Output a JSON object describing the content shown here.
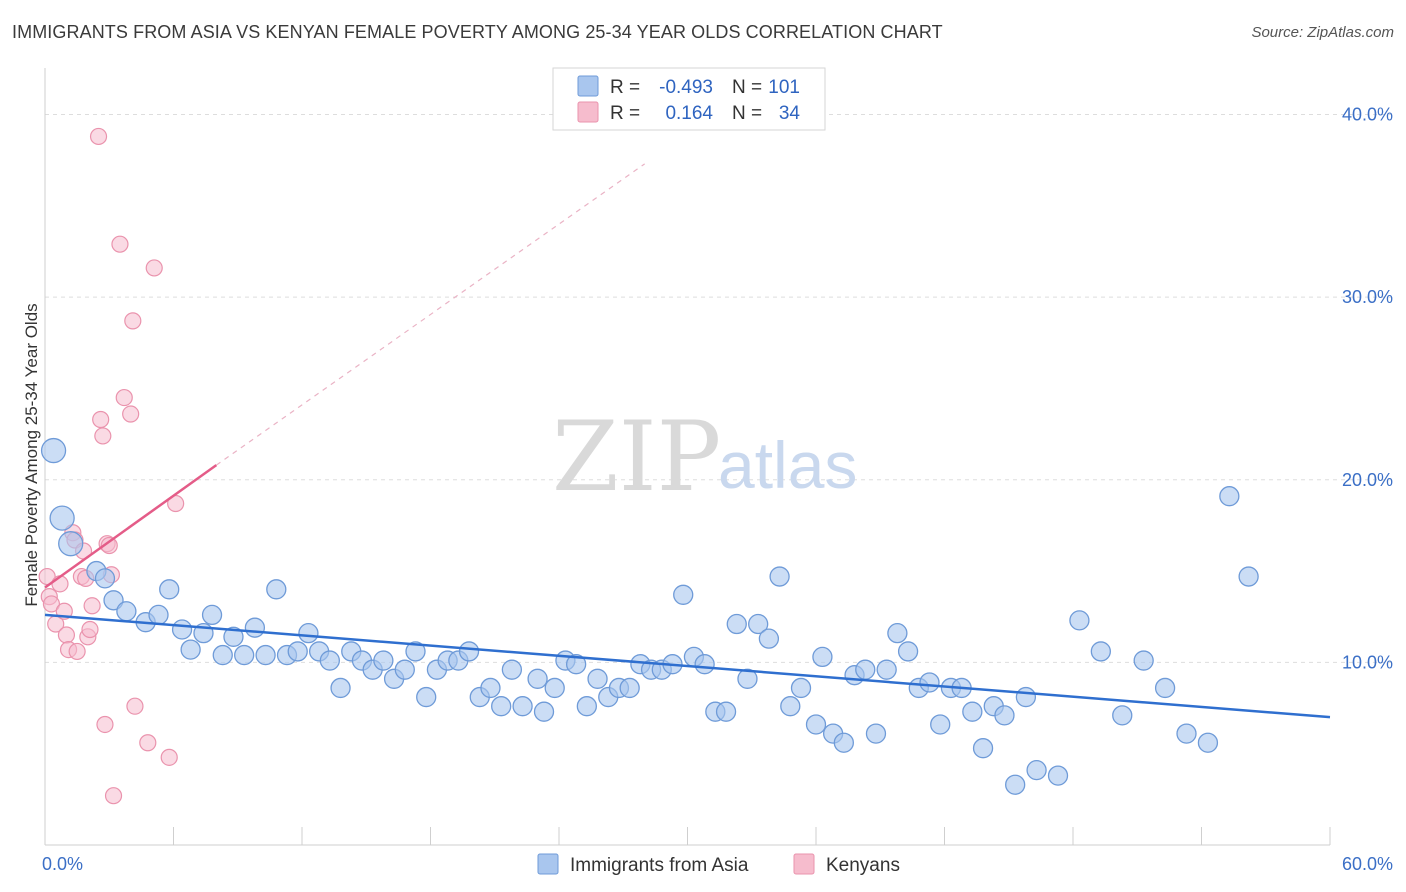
{
  "title": "IMMIGRANTS FROM ASIA VS KENYAN FEMALE POVERTY AMONG 25-34 YEAR OLDS CORRELATION CHART",
  "source": "Source: ZipAtlas.com",
  "watermark": {
    "zip": "ZIP",
    "atlas": "atlas"
  },
  "colors": {
    "asia_fill": "#a9c6ee",
    "asia_stroke": "#6f9bd8",
    "asia_line": "#2f6fcf",
    "kenya_fill": "#f6bccd",
    "kenya_stroke": "#ea93ad",
    "kenya_line": "#e45c88",
    "grid": "#dddddd",
    "axis_text": "#3b6fc6"
  },
  "legend": {
    "rows": [
      {
        "r_label": "R =",
        "r_value": "-0.493",
        "n_label": "N =",
        "n_value": "101"
      },
      {
        "r_label": "R =",
        "r_value": "0.164",
        "n_label": "N =",
        "n_value": "34"
      }
    ]
  },
  "bottom_legend": [
    "Immigrants from Asia",
    "Kenyans"
  ],
  "chart_data": {
    "type": "scatter",
    "title": "IMMIGRANTS FROM ASIA VS KENYAN FEMALE POVERTY AMONG 25-34 YEAR OLDS CORRELATION CHART",
    "xlabel": "",
    "ylabel": "Female Poverty Among 25-34 Year Olds",
    "xlim": [
      0,
      60
    ],
    "ylim": [
      0,
      42
    ],
    "x_tick_labels": [
      "0.0%",
      "60.0%"
    ],
    "y_ticks": [
      10,
      20,
      30,
      40
    ],
    "y_tick_labels": [
      "10.0%",
      "20.0%",
      "30.0%",
      "40.0%"
    ],
    "grid": true,
    "legend_position": "top-center",
    "series": [
      {
        "name": "Immigrants from Asia",
        "trend": {
          "x": [
            0,
            60
          ],
          "y": [
            12.6,
            7.0
          ]
        },
        "points": [
          [
            0.4,
            21.6
          ],
          [
            0.8,
            17.9
          ],
          [
            1.2,
            16.5
          ],
          [
            2.4,
            15.0
          ],
          [
            2.8,
            14.6
          ],
          [
            3.2,
            13.4
          ],
          [
            3.8,
            12.8
          ],
          [
            4.7,
            12.2
          ],
          [
            5.3,
            12.6
          ],
          [
            5.8,
            14.0
          ],
          [
            6.4,
            11.8
          ],
          [
            6.8,
            10.7
          ],
          [
            7.4,
            11.6
          ],
          [
            7.8,
            12.6
          ],
          [
            8.3,
            10.4
          ],
          [
            8.8,
            11.4
          ],
          [
            9.3,
            10.4
          ],
          [
            9.8,
            11.9
          ],
          [
            10.3,
            10.4
          ],
          [
            10.8,
            14.0
          ],
          [
            11.3,
            10.4
          ],
          [
            11.8,
            10.6
          ],
          [
            12.3,
            11.6
          ],
          [
            12.8,
            10.6
          ],
          [
            13.3,
            10.1
          ],
          [
            13.8,
            8.6
          ],
          [
            14.3,
            10.6
          ],
          [
            14.8,
            10.1
          ],
          [
            15.3,
            9.6
          ],
          [
            15.8,
            10.1
          ],
          [
            16.3,
            9.1
          ],
          [
            16.8,
            9.6
          ],
          [
            17.3,
            10.6
          ],
          [
            17.8,
            8.1
          ],
          [
            18.3,
            9.6
          ],
          [
            18.8,
            10.1
          ],
          [
            19.3,
            10.1
          ],
          [
            19.8,
            10.6
          ],
          [
            20.3,
            8.1
          ],
          [
            20.8,
            8.6
          ],
          [
            21.3,
            7.6
          ],
          [
            21.8,
            9.6
          ],
          [
            22.3,
            7.6
          ],
          [
            23.0,
            9.1
          ],
          [
            23.3,
            7.3
          ],
          [
            23.8,
            8.6
          ],
          [
            24.3,
            10.1
          ],
          [
            24.8,
            9.9
          ],
          [
            25.3,
            7.6
          ],
          [
            25.8,
            9.1
          ],
          [
            26.3,
            8.1
          ],
          [
            26.8,
            8.6
          ],
          [
            27.3,
            8.6
          ],
          [
            27.8,
            9.9
          ],
          [
            28.3,
            9.6
          ],
          [
            28.8,
            9.6
          ],
          [
            29.3,
            9.9
          ],
          [
            29.8,
            13.7
          ],
          [
            30.3,
            10.3
          ],
          [
            30.8,
            9.9
          ],
          [
            31.3,
            7.3
          ],
          [
            31.8,
            7.3
          ],
          [
            32.3,
            12.1
          ],
          [
            32.8,
            9.1
          ],
          [
            33.3,
            12.1
          ],
          [
            33.8,
            11.3
          ],
          [
            34.3,
            14.7
          ],
          [
            34.8,
            7.6
          ],
          [
            35.3,
            8.6
          ],
          [
            36.0,
            6.6
          ],
          [
            36.3,
            10.3
          ],
          [
            36.8,
            6.1
          ],
          [
            37.3,
            5.6
          ],
          [
            37.8,
            9.3
          ],
          [
            38.3,
            9.6
          ],
          [
            38.8,
            6.1
          ],
          [
            39.3,
            9.6
          ],
          [
            39.8,
            11.6
          ],
          [
            40.3,
            10.6
          ],
          [
            40.8,
            8.6
          ],
          [
            41.3,
            8.9
          ],
          [
            41.8,
            6.6
          ],
          [
            42.3,
            8.6
          ],
          [
            42.8,
            8.6
          ],
          [
            43.3,
            7.3
          ],
          [
            43.8,
            5.3
          ],
          [
            44.3,
            7.6
          ],
          [
            44.8,
            7.1
          ],
          [
            45.3,
            3.3
          ],
          [
            45.8,
            8.1
          ],
          [
            46.3,
            4.1
          ],
          [
            47.3,
            3.8
          ],
          [
            48.3,
            12.3
          ],
          [
            49.3,
            10.6
          ],
          [
            50.3,
            7.1
          ],
          [
            51.3,
            10.1
          ],
          [
            52.3,
            8.6
          ],
          [
            53.3,
            6.1
          ],
          [
            54.3,
            5.6
          ],
          [
            55.3,
            19.1
          ],
          [
            56.2,
            14.7
          ]
        ]
      },
      {
        "name": "Kenyans",
        "trend": {
          "x": [
            0,
            8
          ],
          "y": [
            14.1,
            20.8
          ],
          "dashed_to": [
            28,
            37.3
          ]
        },
        "points": [
          [
            0.1,
            14.7
          ],
          [
            0.2,
            13.6
          ],
          [
            0.3,
            13.2
          ],
          [
            0.5,
            12.1
          ],
          [
            0.7,
            14.3
          ],
          [
            0.9,
            12.8
          ],
          [
            1.0,
            11.5
          ],
          [
            1.1,
            10.7
          ],
          [
            1.3,
            17.1
          ],
          [
            1.4,
            16.7
          ],
          [
            1.5,
            10.6
          ],
          [
            1.7,
            14.7
          ],
          [
            1.8,
            16.1
          ],
          [
            1.9,
            14.6
          ],
          [
            2.0,
            11.4
          ],
          [
            2.1,
            11.8
          ],
          [
            2.2,
            13.1
          ],
          [
            2.5,
            38.8
          ],
          [
            2.6,
            23.3
          ],
          [
            2.7,
            22.4
          ],
          [
            2.8,
            6.6
          ],
          [
            2.9,
            16.5
          ],
          [
            3.0,
            16.4
          ],
          [
            3.1,
            14.8
          ],
          [
            3.2,
            2.7
          ],
          [
            3.5,
            32.9
          ],
          [
            3.7,
            24.5
          ],
          [
            4.0,
            23.6
          ],
          [
            4.1,
            28.7
          ],
          [
            4.2,
            7.6
          ],
          [
            4.8,
            5.6
          ],
          [
            5.1,
            31.6
          ],
          [
            5.8,
            4.8
          ],
          [
            6.1,
            18.7
          ]
        ]
      }
    ]
  }
}
